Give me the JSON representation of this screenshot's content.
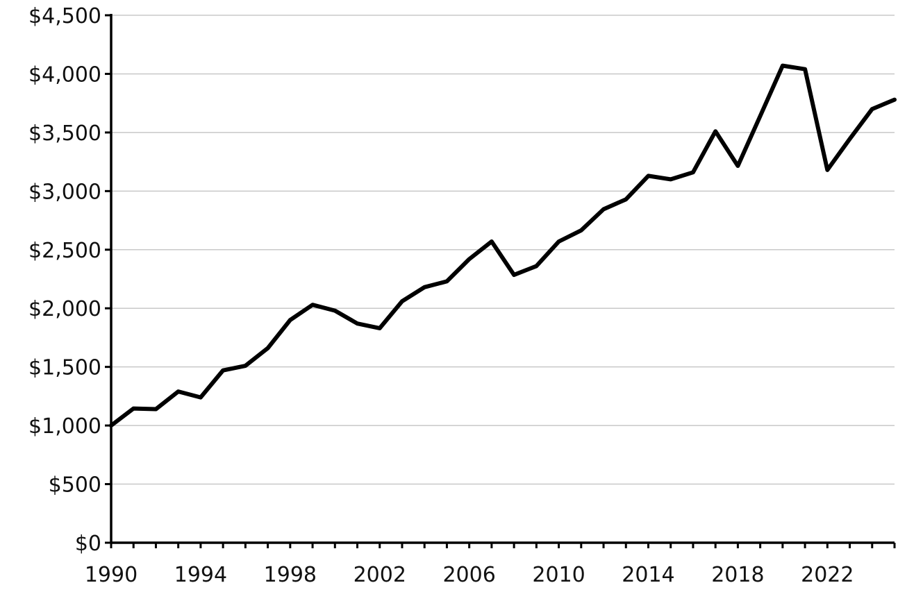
{
  "chart_data": {
    "type": "line",
    "title": "",
    "xlabel": "",
    "ylabel": "",
    "xlim": [
      1990,
      2025
    ],
    "ylim": [
      0,
      4500
    ],
    "grid": true,
    "x_ticks": [
      1990,
      1994,
      1998,
      2002,
      2006,
      2010,
      2014,
      2018,
      2022
    ],
    "x_tick_labels": [
      "1990",
      "1994",
      "1998",
      "2002",
      "2006",
      "2010",
      "2014",
      "2018",
      "2022"
    ],
    "y_ticks": [
      0,
      500,
      1000,
      1500,
      2000,
      2500,
      3000,
      3500,
      4000,
      4500
    ],
    "y_tick_labels": [
      "$0",
      "$500",
      "$1,000",
      "$1,500",
      "$2,000",
      "$2,500",
      "$3,000",
      "$3,500",
      "$4,000",
      "$4,500"
    ],
    "series": [
      {
        "color": "#000000",
        "x": [
          1990,
          1991,
          1992,
          1993,
          1994,
          1995,
          1996,
          1997,
          1998,
          1999,
          2000,
          2001,
          2002,
          2003,
          2004,
          2005,
          2006,
          2007,
          2008,
          2009,
          2010,
          2011,
          2012,
          2013,
          2014,
          2015,
          2016,
          2017,
          2018,
          2019,
          2020,
          2021,
          2022,
          2023,
          2024,
          2025
        ],
        "values": [
          1000,
          1145,
          1140,
          1290,
          1240,
          1470,
          1510,
          1660,
          1900,
          2030,
          1980,
          1870,
          1830,
          2060,
          2180,
          2230,
          2420,
          2570,
          2285,
          2360,
          2570,
          2665,
          2845,
          2930,
          3130,
          3100,
          3160,
          3510,
          3215,
          3640,
          4070,
          4040,
          3180,
          3445,
          3700,
          3780
        ]
      }
    ]
  }
}
